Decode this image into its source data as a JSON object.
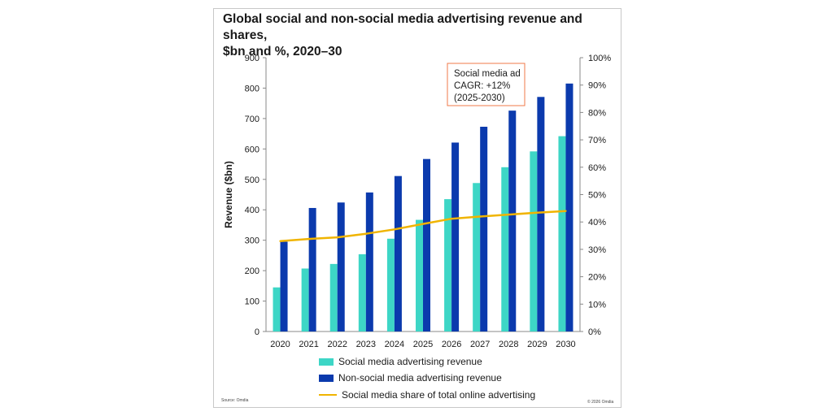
{
  "title_line1": "Global social and non-social media advertising revenue and shares,",
  "title_line2": "$bn and %, 2020–30",
  "source": "Source: Omdia",
  "copyright": "© 2026 Omdia",
  "chart_data": {
    "type": "bar",
    "categories": [
      "2020",
      "2021",
      "2022",
      "2023",
      "2024",
      "2025",
      "2026",
      "2027",
      "2028",
      "2029",
      "2030"
    ],
    "series": [
      {
        "name": "Social media advertising revenue",
        "type": "bar",
        "axis": "left",
        "color": "#3dd6c6",
        "values": [
          145,
          207,
          222,
          254,
          305,
          367,
          435,
          488,
          540,
          592,
          642
        ]
      },
      {
        "name": "Non-social media advertising revenue",
        "type": "bar",
        "axis": "left",
        "color": "#0b3aad",
        "values": [
          295,
          406,
          424,
          457,
          511,
          567,
          621,
          673,
          726,
          771,
          815
        ]
      },
      {
        "name": "Social media share of total online advertising",
        "type": "line",
        "axis": "right",
        "color": "#f0b400",
        "values": [
          33,
          33.8,
          34.4,
          35.7,
          37.3,
          39.3,
          41.2,
          42,
          42.7,
          43.4,
          44
        ]
      }
    ],
    "ylabel": "Revenue ($bn)",
    "ylim": [
      0,
      900
    ],
    "yticks": [
      "0",
      "100",
      "200",
      "300",
      "400",
      "500",
      "600",
      "700",
      "800",
      "900"
    ],
    "y2lim": [
      0,
      100
    ],
    "y2ticks": [
      "0%",
      "10%",
      "20%",
      "30%",
      "40%",
      "50%",
      "60%",
      "70%",
      "80%",
      "90%",
      "100%"
    ],
    "annotation": [
      "Social media ad",
      "CAGR: +12%",
      "(2025-2030)"
    ],
    "legend_position": "bottom",
    "grid": false
  }
}
